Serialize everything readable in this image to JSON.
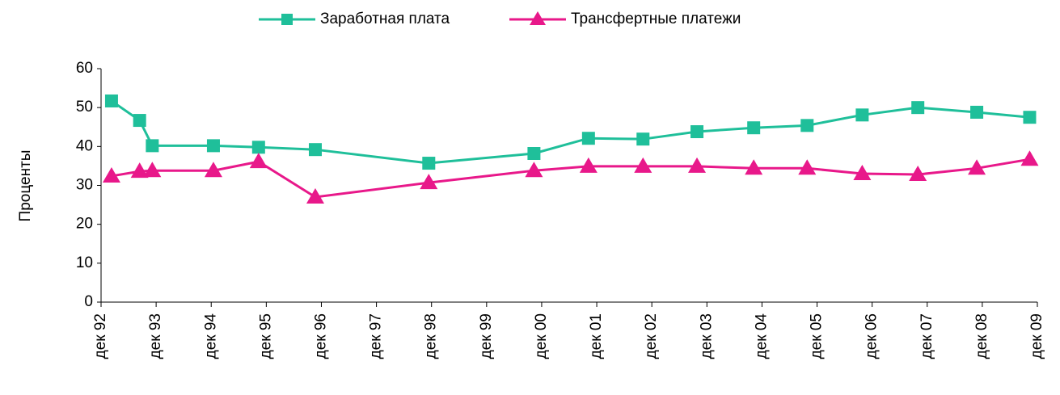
{
  "chart_data": {
    "type": "line",
    "y_label": "Проценты",
    "x": [
      1992.19,
      1992.7,
      1992.93,
      1994.04,
      1994.86,
      1995.89,
      1997.95,
      1999.86,
      2000.85,
      2001.84,
      2002.82,
      2003.85,
      2004.82,
      2005.82,
      2006.83,
      2007.9,
      2008.86
    ],
    "series": [
      {
        "name": "Заработная плата",
        "color": "#1fbf9a",
        "marker": "square",
        "values": [
          51.7,
          46.7,
          40.2,
          40.2,
          39.8,
          39.2,
          35.7,
          38.2,
          42.1,
          41.9,
          43.8,
          44.8,
          45.4,
          48.1,
          50,
          48.8,
          47.5
        ]
      },
      {
        "name": "Трансфертные платежи",
        "color": "#e8188a",
        "marker": "triangle",
        "values": [
          32.4,
          33.6,
          33.8,
          33.8,
          36.1,
          27,
          30.7,
          33.8,
          34.9,
          34.9,
          34.9,
          34.4,
          34.4,
          33,
          32.8,
          34.4,
          36.7
        ]
      }
    ],
    "xlim": [
      1992,
      2009
    ],
    "xticks": [
      {
        "value": 1992,
        "label": "дек 92"
      },
      {
        "value": 1993,
        "label": "дек 93"
      },
      {
        "value": 1994,
        "label": "дек 94"
      },
      {
        "value": 1995,
        "label": "дек 95"
      },
      {
        "value": 1996,
        "label": "дек 96"
      },
      {
        "value": 1997,
        "label": "дек 97"
      },
      {
        "value": 1998,
        "label": "дек 98"
      },
      {
        "value": 1999,
        "label": "дек 99"
      },
      {
        "value": 2000,
        "label": "дек 00"
      },
      {
        "value": 2001,
        "label": "дек 01"
      },
      {
        "value": 2002,
        "label": "дек 02"
      },
      {
        "value": 2003,
        "label": "дек 03"
      },
      {
        "value": 2004,
        "label": "дек 04"
      },
      {
        "value": 2005,
        "label": "дек 05"
      },
      {
        "value": 2006,
        "label": "дек 06"
      },
      {
        "value": 2007,
        "label": "дек 07"
      },
      {
        "value": 2008,
        "label": "дек 08"
      },
      {
        "value": 2009,
        "label": "дек 09"
      }
    ],
    "ylim": [
      0,
      60
    ],
    "yticks": [
      0,
      10,
      20,
      30,
      40,
      50,
      60
    ],
    "legend": "top"
  }
}
